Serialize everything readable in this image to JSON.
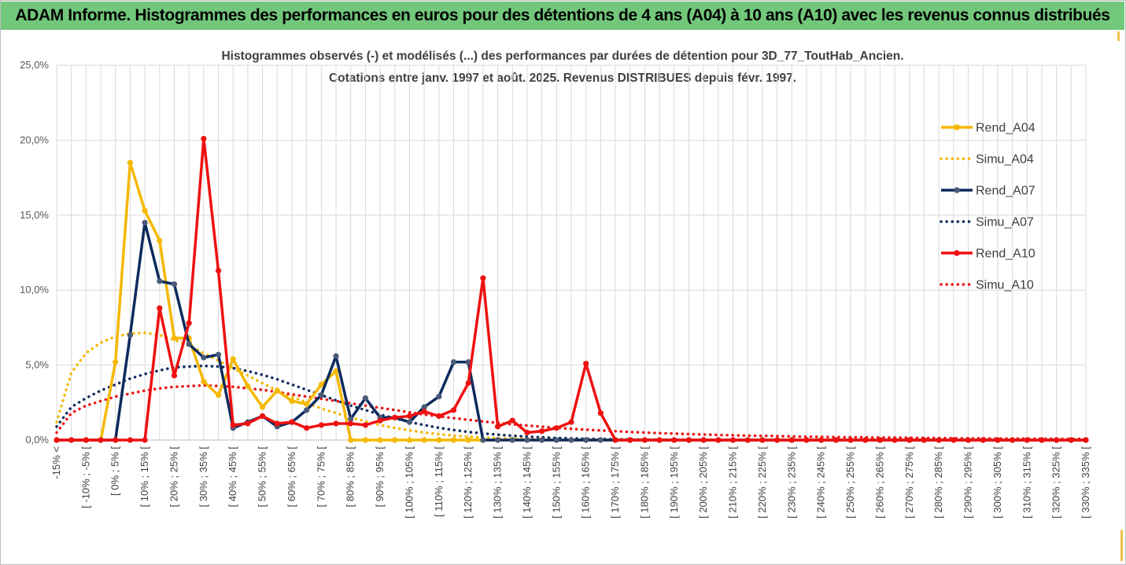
{
  "banner": {
    "title": "ADAM Informe. Histogrammes des performances en euros pour des détentions de 4 ans (A04) à 10 ans (A10) avec les revenus connus distribués"
  },
  "chart_data": {
    "type": "line",
    "title_line1": "Histogrammes observés (-) et modélisés (...) des performances par durées de détention pour 3D_77_ToutHab_Ancien.",
    "title_line2": "Cotations entre janv. 1997 et août. 2025. Revenus DISTRIBUES depuis févr. 1997.",
    "ylim": [
      0,
      25
    ],
    "y_ticks": [
      "0,0%",
      "5,0%",
      "10,0%",
      "15,0%",
      "20,0%",
      "25,0%"
    ],
    "categories": [
      "-15% <",
      "[ -15% ; -10% [",
      "[ -10% ; -5% [",
      "[ -5% ; 0% [",
      "[ 0% ; 5% [",
      "[ 5% ; 10% [",
      "[ 10% ; 15% [",
      "[ 15% ; 20% [",
      "[ 20% ; 25% [",
      "[ 25% ; 30% [",
      "[ 30% ; 35% [",
      "[ 35% ; 40% [",
      "[ 40% ; 45% [",
      "[ 45% ; 50% [",
      "[ 50% ; 55% [",
      "[ 55% ; 60% [",
      "[ 60% ; 65% [",
      "[ 65% ; 70% [",
      "[ 70% ; 75% [",
      "[ 75% ; 80% [",
      "[ 80% ; 85% [",
      "[ 85% ; 90% [",
      "[ 90% ; 95% [",
      "[ 95% ; 100% [",
      "[ 100% ; 105% [",
      "[ 105% ; 110% [",
      "[ 110% ; 115% [",
      "[ 115% ; 120% [",
      "[ 120% ; 125% [",
      "[ 125% ; 130% [",
      "[ 130% ; 135% [",
      "[ 135% ; 140% [",
      "[ 140% ; 145% [",
      "[ 145% ; 150% [",
      "[ 150% ; 155% [",
      "[ 155% ; 160% [",
      "[ 160% ; 165% [",
      "[ 165% ; 170% [",
      "[ 170% ; 175% [",
      "[ 175% ; 180% [",
      "[ 180% ; 185% [",
      "[ 185% ; 190% [",
      "[ 190% ; 195% [",
      "[ 195% ; 200% [",
      "[ 200% ; 205% [",
      "[ 205% ; 210% [",
      "[ 210% ; 215% [",
      "[ 215% ; 220% [",
      "[ 220% ; 225% [",
      "[ 225% ; 230% [",
      "[ 230% ; 235% [",
      "[ 235% ; 240% [",
      "[ 240% ; 245% [",
      "[ 245% ; 250% [",
      "[ 250% ; 255% [",
      "[ 255% ; 260% [",
      "[ 260% ; 265% [",
      "[ 265% ; 270% [",
      "[ 270% ; 275% [",
      "[ 275% ; 280% [",
      "[ 280% ; 285% [",
      "[ 285% ; 290% [",
      "[ 290% ; 295% [",
      "[ 295% ; 300% [",
      "[ 300% ; 305% [",
      "[ 305% ; 310% [",
      "[ 310% ; 315% [",
      "[ 315% ; 320% [",
      "[ 320% ; 325% [",
      "[ 325% ; 330% [",
      "[ 330% ; 335% ["
    ],
    "grid": true,
    "legend_position": "right",
    "series": [
      {
        "name": "Rend_A04",
        "style": "solid-markers",
        "color": "#f5b800",
        "values": [
          0,
          0,
          0,
          0,
          5.2,
          18.5,
          15.3,
          13.3,
          6.8,
          6.8,
          3.9,
          3.0,
          5.4,
          3.6,
          2.2,
          3.3,
          2.6,
          2.4,
          3.7,
          4.6,
          0,
          0,
          0,
          0,
          0,
          0,
          0,
          0,
          0,
          0,
          0,
          0,
          0,
          0,
          0,
          0,
          0,
          0,
          0,
          0,
          0,
          0,
          0,
          0,
          0,
          0,
          0,
          0,
          0,
          0,
          0,
          0,
          0,
          0,
          0,
          0,
          0,
          0,
          0,
          0,
          0,
          0,
          0,
          0,
          0,
          0,
          0,
          0,
          0,
          0,
          0
        ]
      },
      {
        "name": "Simu_A04",
        "style": "dotted",
        "color": "#f5b800",
        "values": [
          1.2,
          4.5,
          5.8,
          6.5,
          6.9,
          7.1,
          7.15,
          7.0,
          6.7,
          6.3,
          5.8,
          5.3,
          4.8,
          4.3,
          3.8,
          3.3,
          2.9,
          2.5,
          2.1,
          1.8,
          1.5,
          1.25,
          1.0,
          0.8,
          0.65,
          0.5,
          0.4,
          0.3,
          0.22,
          0.17,
          0.12,
          0.09,
          0.07,
          0.05,
          0.03,
          0.02,
          0.02,
          0.01,
          0.01,
          0,
          0,
          0,
          0,
          0,
          0,
          0,
          0,
          0,
          0,
          0,
          0,
          0,
          0,
          0,
          0,
          0,
          0,
          0,
          0,
          0,
          0,
          0,
          0,
          0,
          0,
          0,
          0,
          0,
          0,
          0,
          0
        ]
      },
      {
        "name": "Rend_A07",
        "style": "solid-markers",
        "color": "#0d2b5e",
        "values": [
          0,
          0,
          0,
          0,
          0,
          7.0,
          14.5,
          10.6,
          10.4,
          6.4,
          5.5,
          5.7,
          0.8,
          1.2,
          1.6,
          0.9,
          1.2,
          2.0,
          3.0,
          5.6,
          1.4,
          2.8,
          1.5,
          1.5,
          1.2,
          2.2,
          2.9,
          5.2,
          5.2,
          0,
          0,
          0,
          0,
          0,
          0,
          0,
          0,
          0,
          0,
          0,
          0,
          0,
          0,
          0,
          0,
          0,
          0,
          0,
          0,
          0,
          0,
          0,
          0,
          0,
          0,
          0,
          0,
          0,
          0,
          0,
          0,
          0,
          0,
          0,
          0,
          0,
          0,
          0,
          0,
          0,
          0
        ]
      },
      {
        "name": "Simu_A07",
        "style": "dotted",
        "color": "#0d2b5e",
        "values": [
          0.9,
          2.2,
          2.8,
          3.3,
          3.7,
          4.1,
          4.4,
          4.65,
          4.85,
          4.9,
          4.95,
          4.9,
          4.8,
          4.6,
          4.35,
          4.05,
          3.7,
          3.35,
          3.0,
          2.65,
          2.3,
          2.0,
          1.7,
          1.45,
          1.2,
          1.0,
          0.82,
          0.67,
          0.54,
          0.44,
          0.36,
          0.29,
          0.23,
          0.18,
          0.14,
          0.11,
          0.09,
          0.07,
          0.05,
          0.04,
          0.03,
          0.02,
          0.02,
          0.01,
          0.01,
          0,
          0,
          0,
          0,
          0,
          0,
          0,
          0,
          0,
          0,
          0,
          0,
          0,
          0,
          0,
          0,
          0,
          0,
          0,
          0,
          0,
          0,
          0,
          0,
          0,
          0
        ]
      },
      {
        "name": "Rend_A10",
        "style": "solid-markers",
        "color": "#ee1111",
        "values": [
          0,
          0,
          0,
          0,
          0,
          0,
          0,
          8.8,
          4.3,
          7.8,
          20.1,
          11.3,
          1.0,
          1.1,
          1.6,
          1.1,
          1.2,
          0.8,
          1.0,
          1.1,
          1.1,
          1.0,
          1.3,
          1.5,
          1.6,
          1.9,
          1.6,
          2.0,
          3.8,
          10.8,
          0.9,
          1.3,
          0.5,
          0.6,
          0.8,
          1.2,
          5.1,
          1.8,
          0,
          0,
          0,
          0,
          0,
          0,
          0,
          0,
          0,
          0,
          0,
          0,
          0,
          0,
          0,
          0,
          0,
          0,
          0,
          0,
          0,
          0,
          0,
          0,
          0,
          0,
          0,
          0,
          0,
          0,
          0,
          0,
          0
        ]
      },
      {
        "name": "Simu_A10",
        "style": "dotted",
        "color": "#ee1111",
        "values": [
          0.5,
          1.8,
          2.3,
          2.6,
          2.9,
          3.1,
          3.3,
          3.45,
          3.55,
          3.6,
          3.65,
          3.6,
          3.55,
          3.45,
          3.35,
          3.2,
          3.05,
          2.9,
          2.75,
          2.6,
          2.45,
          2.3,
          2.15,
          2.0,
          1.85,
          1.7,
          1.58,
          1.46,
          1.35,
          1.24,
          1.14,
          1.05,
          0.97,
          0.89,
          0.82,
          0.75,
          0.69,
          0.64,
          0.59,
          0.54,
          0.5,
          0.46,
          0.43,
          0.4,
          0.37,
          0.34,
          0.32,
          0.3,
          0.28,
          0.26,
          0.24,
          0.22,
          0.21,
          0.2,
          0.19,
          0.18,
          0.17,
          0.16,
          0.15,
          0.14,
          0.13,
          0.12,
          0.11,
          0.11,
          0.1,
          0.1,
          0.09,
          0.09,
          0.08,
          0.08,
          0.08
        ]
      }
    ]
  }
}
